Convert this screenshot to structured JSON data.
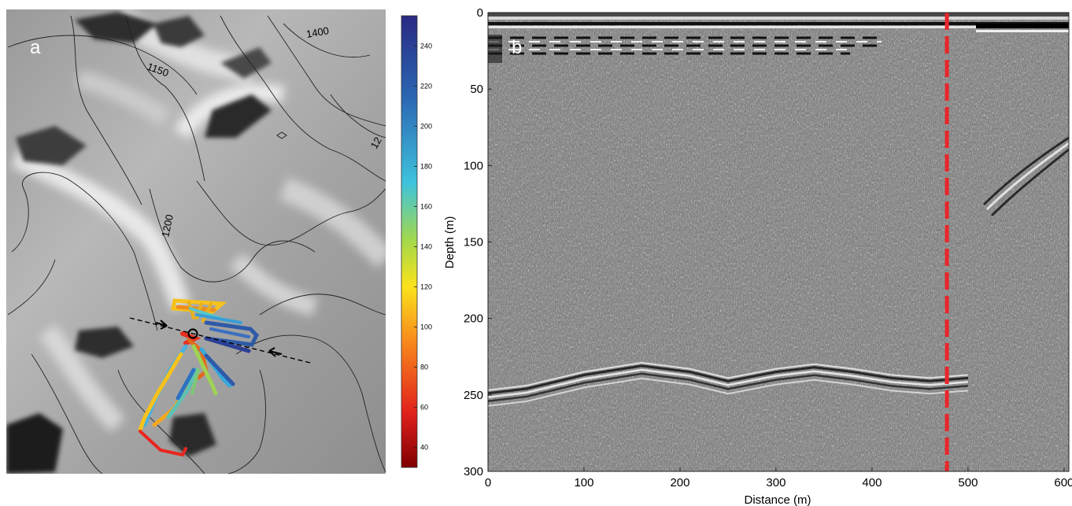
{
  "panel_a": {
    "label": "a",
    "contour_labels": [
      "1150",
      "1400",
      "1200",
      "12"
    ]
  },
  "colorbar": {
    "ticks": [
      40,
      60,
      80,
      100,
      120,
      140,
      160,
      180,
      200,
      220,
      240
    ],
    "min": 30,
    "max": 255,
    "colors": [
      "#7f0000",
      "#e0201c",
      "#f7831c",
      "#fbe21b",
      "#a6d94a",
      "#3ec3dc",
      "#2b66b3",
      "#2a2a82"
    ]
  },
  "panel_b": {
    "label": "b",
    "marker_color": "#e8262a"
  },
  "chart_data": {
    "type": "radargram",
    "xlabel": "Distance (m)",
    "ylabel": "Depth (m)",
    "xlim": [
      0,
      605
    ],
    "ylim": [
      300,
      0
    ],
    "x_ticks": [
      0,
      100,
      200,
      300,
      400,
      500,
      600
    ],
    "y_ticks": [
      0,
      50,
      100,
      150,
      200,
      250,
      300
    ],
    "dashed_marker_x": 478,
    "bed_reflector": {
      "x": [
        0,
        40,
        100,
        160,
        210,
        250,
        300,
        340,
        380,
        420,
        460,
        500
      ],
      "depth": [
        250,
        247,
        238,
        232,
        236,
        242,
        236,
        233,
        236,
        240,
        242,
        240
      ]
    }
  }
}
